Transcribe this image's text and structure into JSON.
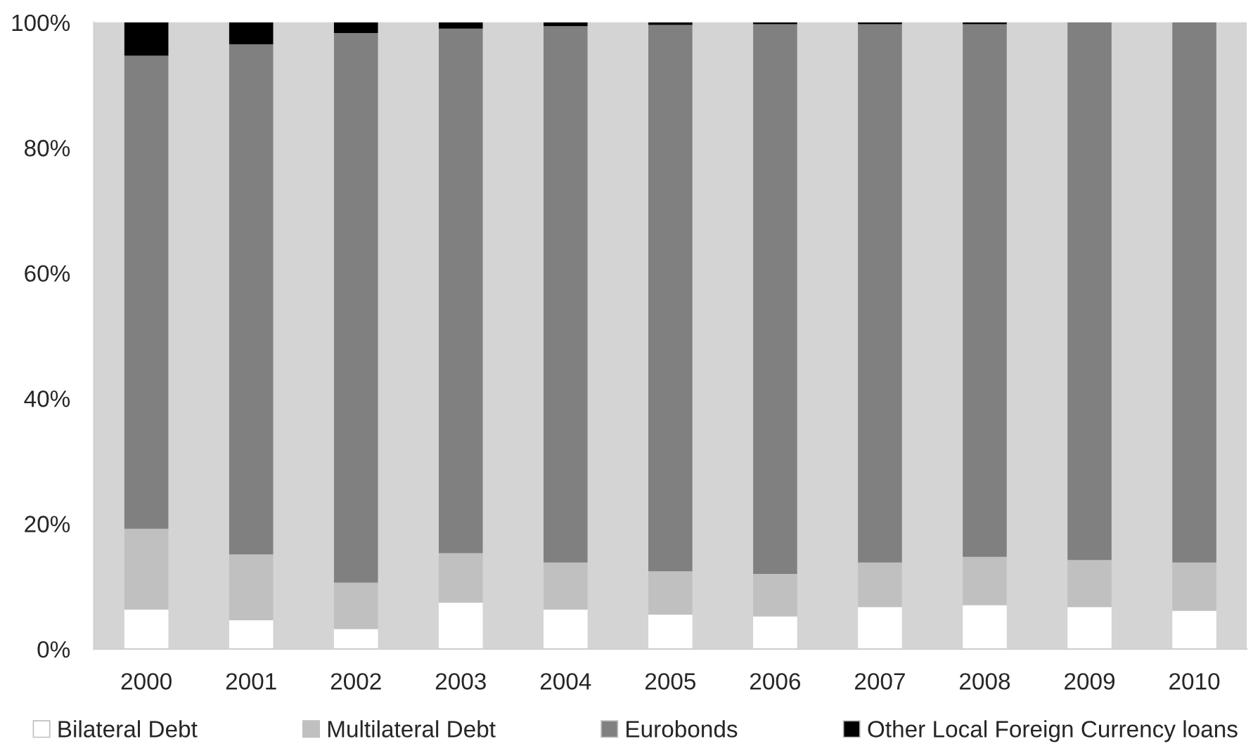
{
  "chart_data": {
    "type": "bar",
    "stacked": true,
    "categories": [
      "2000",
      "2001",
      "2002",
      "2003",
      "2004",
      "2005",
      "2006",
      "2007",
      "2008",
      "2009",
      "2010"
    ],
    "series": [
      {
        "name": "Bilateral Debt",
        "color": "#ffffff",
        "values": [
          6.3,
          4.6,
          3.2,
          7.4,
          6.3,
          5.5,
          5.2,
          6.7,
          7.0,
          6.7,
          6.1
        ]
      },
      {
        "name": "Multilateral Debt",
        "color": "#c0c0c0",
        "values": [
          12.9,
          10.5,
          7.4,
          7.9,
          7.5,
          6.9,
          6.8,
          7.1,
          7.7,
          7.5,
          7.7
        ]
      },
      {
        "name": "Eurobonds",
        "color": "#808080",
        "values": [
          75.5,
          81.4,
          87.7,
          83.7,
          85.6,
          87.2,
          87.7,
          85.9,
          85.0,
          85.8,
          86.2
        ]
      },
      {
        "name": "Other Local Foreign Currency loans",
        "color": "#000000",
        "values": [
          5.3,
          3.5,
          1.7,
          1.0,
          0.6,
          0.4,
          0.3,
          0.3,
          0.3,
          0.0,
          0.0
        ]
      }
    ],
    "ylim": [
      0,
      100
    ],
    "yticks": [
      {
        "value": 0,
        "label": "0%"
      },
      {
        "value": 20,
        "label": "20%"
      },
      {
        "value": 40,
        "label": "40%"
      },
      {
        "value": 60,
        "label": "60%"
      },
      {
        "value": 80,
        "label": "80%"
      },
      {
        "value": 100,
        "label": "100%"
      }
    ],
    "legend": "bottom",
    "grid": false
  }
}
